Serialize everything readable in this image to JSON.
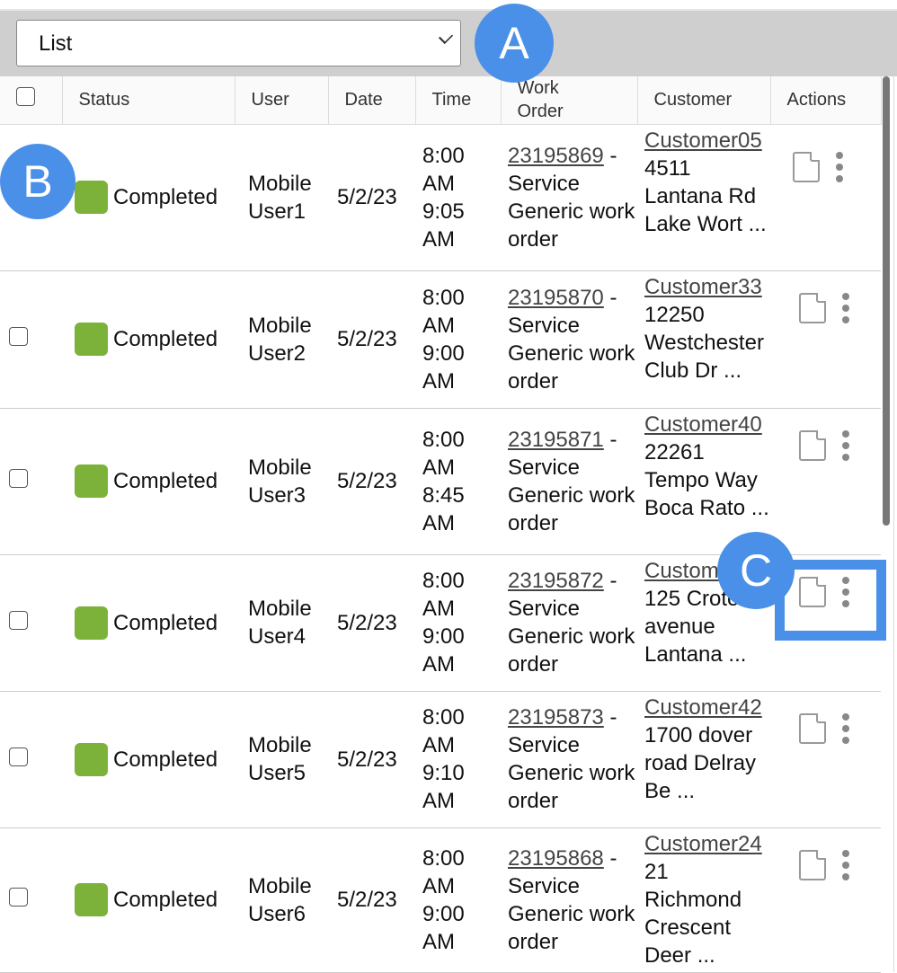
{
  "view_select": {
    "value": "List"
  },
  "columns": [
    "Status",
    "User",
    "Date",
    "Time",
    "Work\nOrder",
    "Customer",
    "Actions"
  ],
  "rows": [
    {
      "status": "Completed",
      "user": "Mobile User1",
      "date": "5/2/23",
      "start": "8:00 AM",
      "end": "9:05 AM",
      "wo": "23195869",
      "wo_desc": "Service Generic work order",
      "customer": "Customer05",
      "address": "4511 Lantana Rd Lake Wort ..."
    },
    {
      "status": "Completed",
      "user": "Mobile User2",
      "date": "5/2/23",
      "start": "8:00 AM",
      "end": "9:00 AM",
      "wo": "23195870",
      "wo_desc": "Service Generic work order",
      "customer": "Customer33",
      "address": "12250 Westchester Club Dr ..."
    },
    {
      "status": "Completed",
      "user": "Mobile User3",
      "date": "5/2/23",
      "start": "8:00 AM",
      "end": "8:45 AM",
      "wo": "23195871",
      "wo_desc": "Service Generic work order",
      "customer": "Customer40",
      "address": "22261 Tempo Way Boca Rato ..."
    },
    {
      "status": "Completed",
      "user": "Mobile User4",
      "date": "5/2/23",
      "start": "8:00 AM",
      "end": "9:00 AM",
      "wo": "23195872",
      "wo_desc": "Service Generic work order",
      "customer": "Custom",
      "address": "125 Croton avenue Lantana ..."
    },
    {
      "status": "Completed",
      "user": "Mobile User5",
      "date": "5/2/23",
      "start": "8:00 AM",
      "end": "9:10 AM",
      "wo": "23195873",
      "wo_desc": "Service Generic work order",
      "customer": "Customer42",
      "address": "1700 dover road Delray Be ..."
    },
    {
      "status": "Completed",
      "user": "Mobile User6",
      "date": "5/2/23",
      "start": "8:00 AM",
      "end": "9:00 AM",
      "wo": "23195868",
      "wo_desc": "Service Generic work order",
      "customer": "Customer24",
      "address": "21 Richmond Crescent Deer ..."
    }
  ],
  "annotations": {
    "a": "A",
    "b": "B",
    "c": "C"
  },
  "colors": {
    "status_completed": "#7cb23a",
    "annotation": "#4a90e8"
  }
}
